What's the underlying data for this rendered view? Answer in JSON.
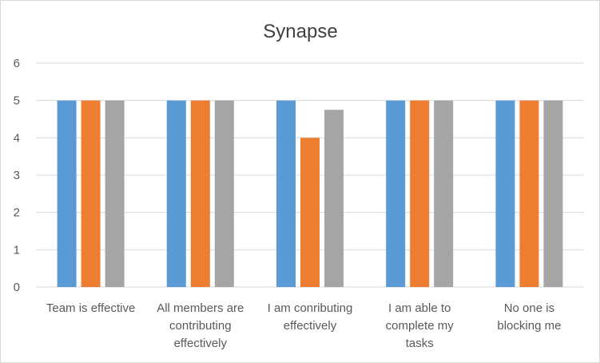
{
  "chart_data": {
    "type": "bar",
    "title": "Synapse",
    "xlabel": "",
    "ylabel": "",
    "ylim": [
      0,
      6
    ],
    "yticks": [
      0,
      1,
      2,
      3,
      4,
      5,
      6
    ],
    "grid": true,
    "legend": "none",
    "categories": [
      "Team is effective",
      "All members are contributing effectively",
      "I am conributing effectively",
      "I am able to complete my tasks",
      "No one is blocking me"
    ],
    "category_lines": [
      [
        "Team is effective"
      ],
      [
        "All members are",
        "contributing",
        "effectively"
      ],
      [
        "I am conributing",
        "effectively"
      ],
      [
        "I am able to",
        "complete my",
        "tasks"
      ],
      [
        "No one is",
        "blocking me"
      ]
    ],
    "series": [
      {
        "values": [
          5,
          5,
          5,
          5,
          5
        ],
        "color": "#5b9bd5"
      },
      {
        "values": [
          5,
          5,
          4,
          5,
          5
        ],
        "color": "#ed7d31"
      },
      {
        "values": [
          5,
          5,
          4.75,
          5,
          5
        ],
        "color": "#a5a5a5"
      }
    ],
    "colors": {
      "grid": "#d9d9d9",
      "axis": "#d9d9d9",
      "text": "#595959",
      "title": "#404040"
    }
  }
}
